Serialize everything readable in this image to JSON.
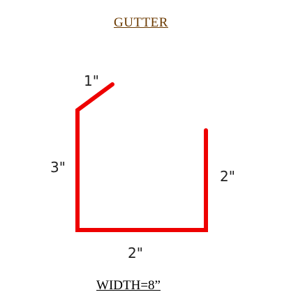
{
  "title": "GUTTER",
  "profile": {
    "lip_label": "1\"",
    "back_label": "3\"",
    "bottom_label": "2\"",
    "front_label": "2\""
  },
  "width_label": "WIDTH=8”",
  "colors": {
    "profile_line": "#ee0000",
    "title_text": "#6b3a00",
    "label_text": "#222222"
  }
}
